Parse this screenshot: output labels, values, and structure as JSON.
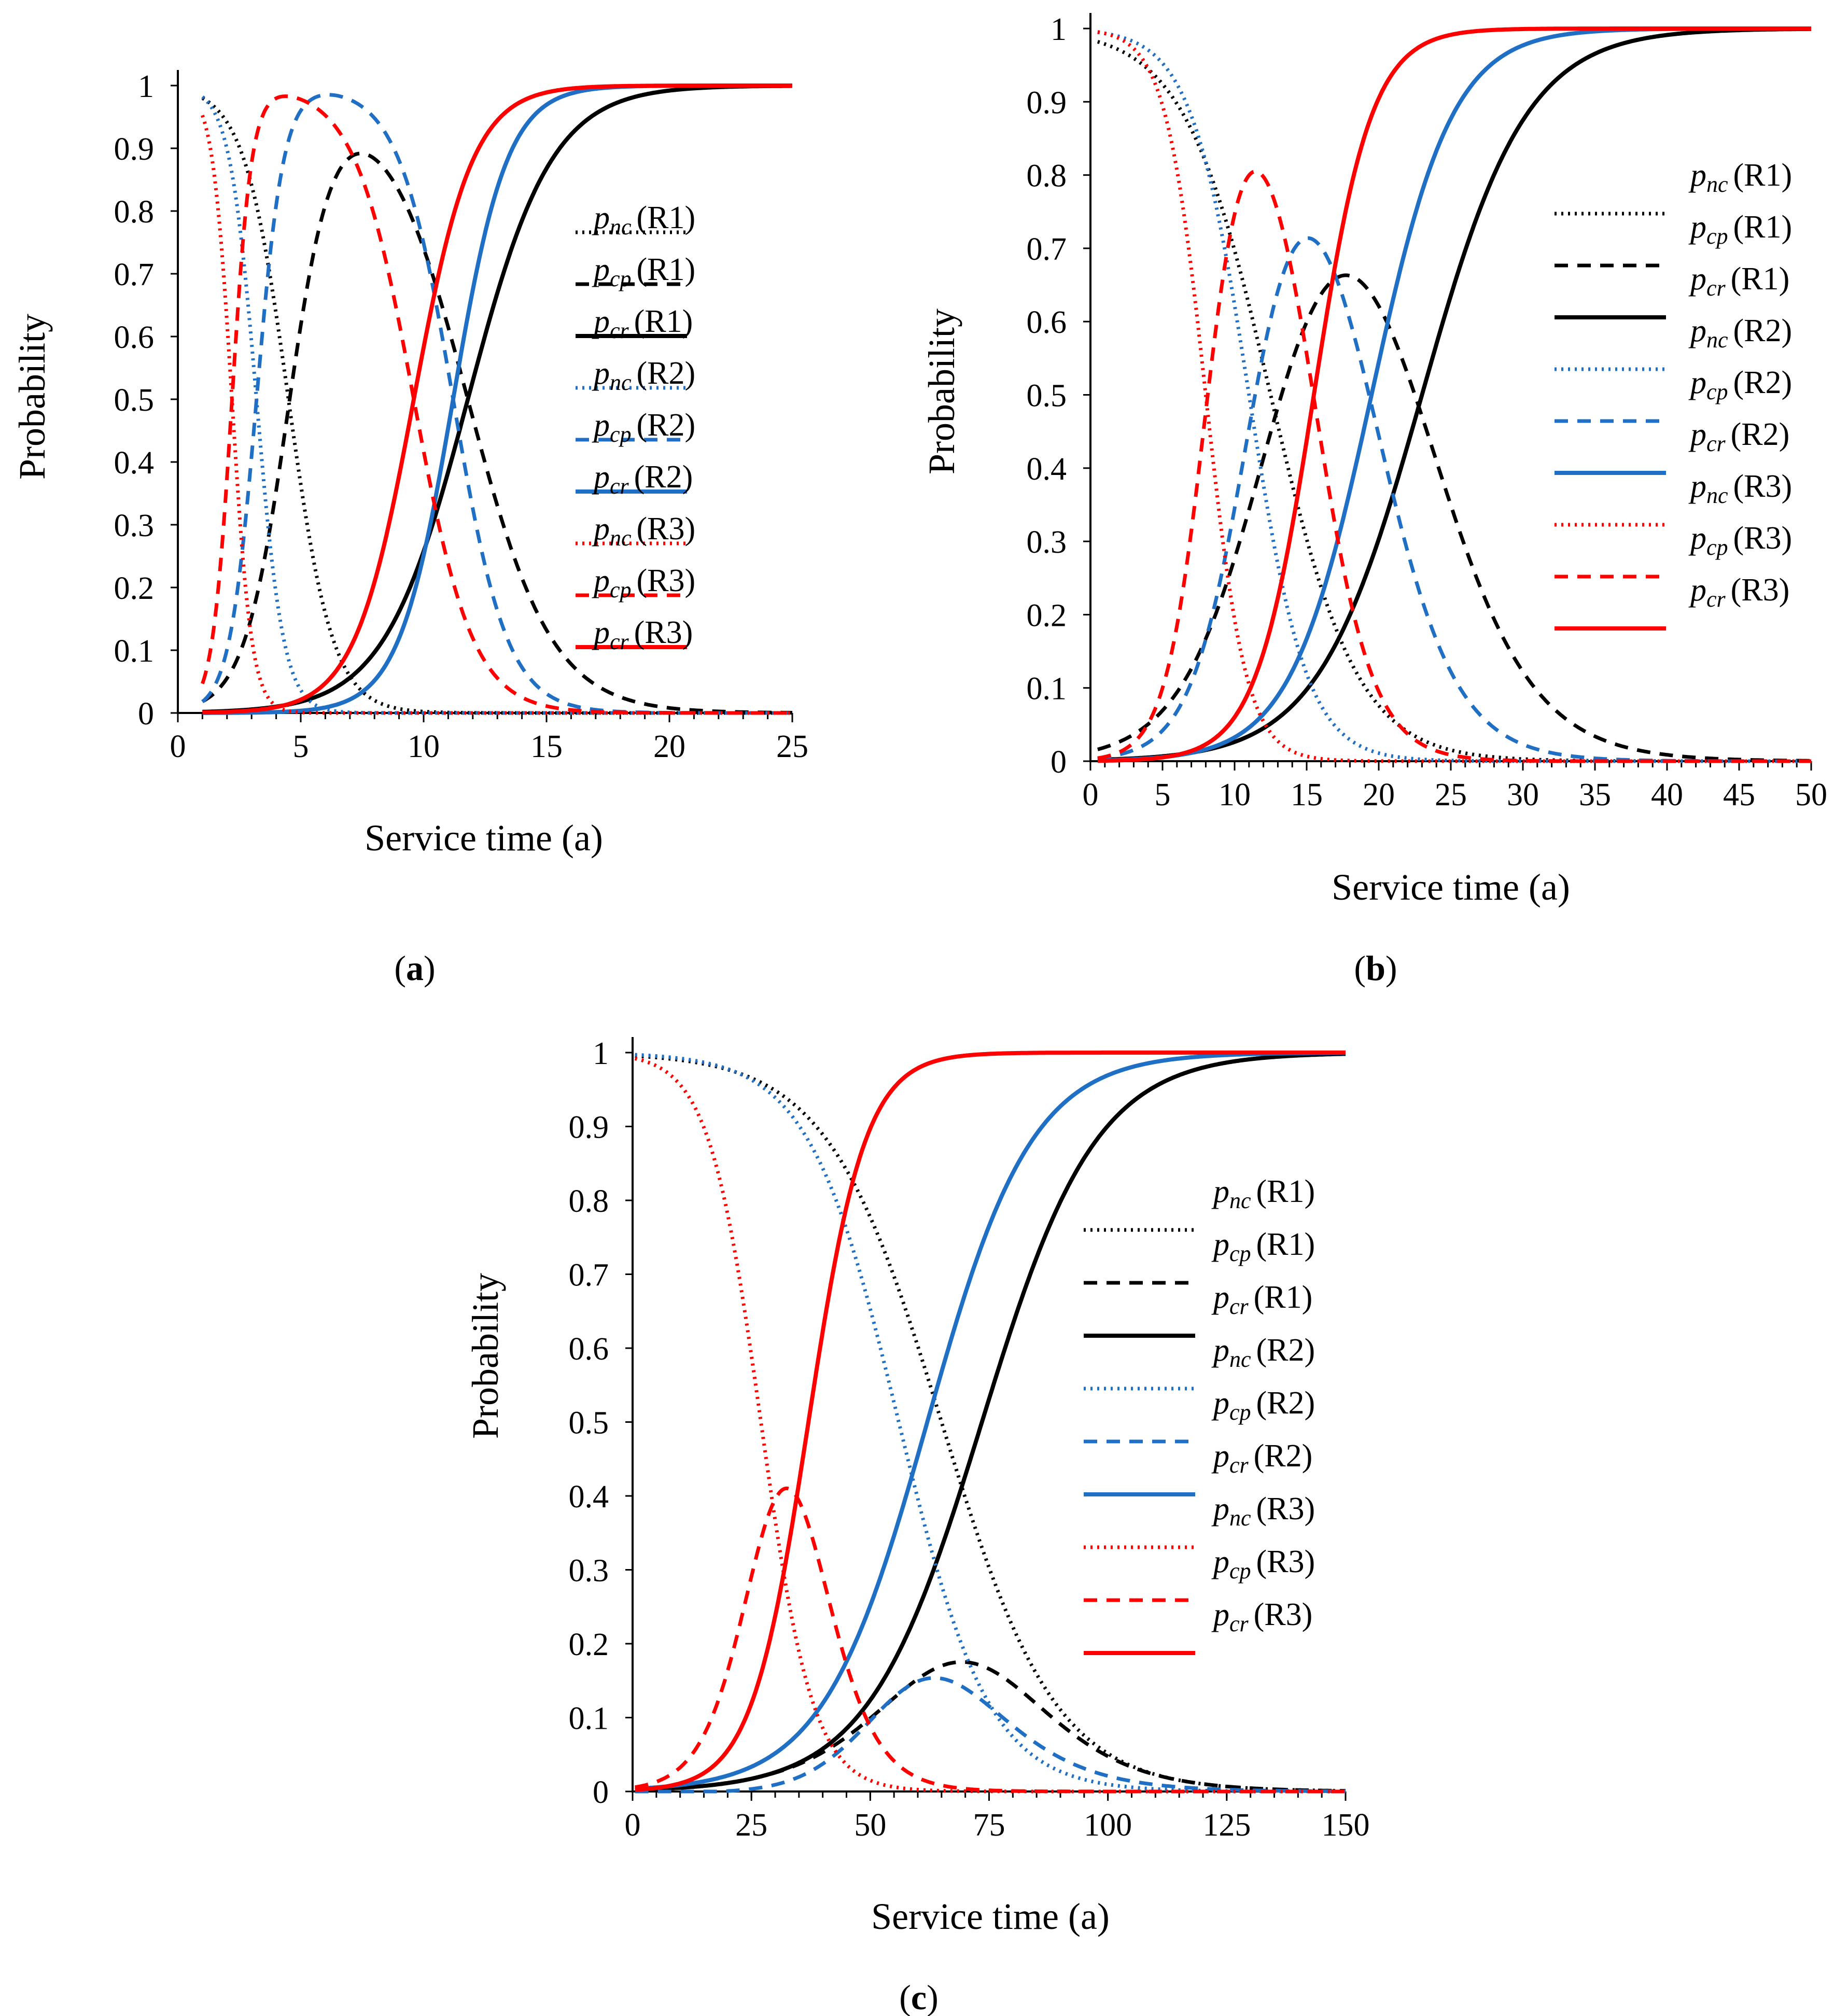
{
  "styles": {
    "colors": {
      "R1": "#000000",
      "R2": "#1F6FC5",
      "R3": "#FF0000"
    },
    "dash": {
      "pnc": "dotted",
      "pcp": "dashed",
      "pcr": "solid"
    }
  },
  "legend_entries": [
    {
      "p": "p",
      "sub": "nc",
      "label": "(R1)",
      "series": "pnc_R1"
    },
    {
      "p": "p",
      "sub": "cp",
      "label": "(R1)",
      "series": "pcp_R1"
    },
    {
      "p": "p",
      "sub": "cr",
      "label": "(R1)",
      "series": "pcr_R1"
    },
    {
      "p": "p",
      "sub": "nc",
      "label": "(R2)",
      "series": "pnc_R2"
    },
    {
      "p": "p",
      "sub": "cp",
      "label": "(R2)",
      "series": "pcp_R2"
    },
    {
      "p": "p",
      "sub": "cr",
      "label": "(R2)",
      "series": "pcr_R2"
    },
    {
      "p": "p",
      "sub": "nc",
      "label": "(R3)",
      "series": "pnc_R3"
    },
    {
      "p": "p",
      "sub": "cp",
      "label": "(R3)",
      "series": "pcp_R3"
    },
    {
      "p": "p",
      "sub": "cr",
      "label": "(R3)",
      "series": "pcr_R3"
    }
  ],
  "chart_data": [
    {
      "id": "a",
      "type": "line",
      "caption_letter": "a",
      "xlabel": "Service time (a)",
      "ylabel": "Probability",
      "xlim": [
        0,
        25
      ],
      "ylim": [
        0,
        1
      ],
      "xticks": [
        0,
        5,
        10,
        15,
        20,
        25
      ],
      "yticks": [
        0,
        0.1,
        0.2,
        0.3,
        0.4,
        0.5,
        0.6,
        0.7,
        0.8,
        0.9,
        1
      ],
      "ytick_labels": [
        "0",
        "0.1",
        "0.2",
        "0.3",
        "0.4",
        "0.5",
        "0.6",
        "0.7",
        "0.8",
        "0.9",
        "1"
      ],
      "xtick_labels": [
        "0",
        "5",
        "10",
        "15",
        "20",
        "25"
      ],
      "x_start": 1,
      "params": {
        "R1": [
          4.5,
          0.9,
          11.8,
          1.7
        ],
        "R2": [
          3.2,
          0.55,
          11.2,
          1.1
        ],
        "R3": [
          2.2,
          0.4,
          9.6,
          1.2
        ]
      }
    },
    {
      "id": "b",
      "type": "line",
      "caption_letter": "b",
      "xlabel": "Service time (a)",
      "ylabel": "Probability",
      "xlim": [
        0,
        50
      ],
      "ylim": [
        0,
        1
      ],
      "xticks": [
        0,
        5,
        10,
        15,
        20,
        25,
        30,
        35,
        40,
        45,
        50
      ],
      "yticks": [
        0,
        0.1,
        0.2,
        0.3,
        0.4,
        0.5,
        0.6,
        0.7,
        0.8,
        0.9,
        1
      ],
      "ytick_labels": [
        "0",
        "0.1",
        "0.2",
        "0.3",
        "0.4",
        "0.5",
        "0.6",
        "0.7",
        "0.8",
        "0.9",
        "1"
      ],
      "xtick_labels": [
        "0",
        "5",
        "10",
        "15",
        "20",
        "25",
        "30",
        "35",
        "40",
        "45",
        "50"
      ],
      "x_start": 0.5,
      "params": {
        "R1": [
          12.5,
          3.0,
          23.0,
          3.6
        ],
        "R2": [
          11.0,
          2.0,
          19.5,
          2.8
        ],
        "R3": [
          8.0,
          1.4,
          15.5,
          2.0
        ]
      }
    },
    {
      "id": "c",
      "type": "line",
      "caption_letter": "c",
      "xlabel": "Service time (a)",
      "ylabel": "Probability",
      "xlim": [
        0,
        150
      ],
      "ylim": [
        0,
        1
      ],
      "xticks": [
        0,
        25,
        50,
        75,
        100,
        125,
        150
      ],
      "yticks": [
        0,
        0.1,
        0.2,
        0.3,
        0.4,
        0.5,
        0.6,
        0.7,
        0.8,
        0.9,
        1
      ],
      "ytick_labels": [
        "0",
        "0.1",
        "0.2",
        "0.3",
        "0.4",
        "0.5",
        "0.6",
        "0.7",
        "0.8",
        "0.9",
        "1"
      ],
      "xtick_labels": [
        "0",
        "25",
        "50",
        "75",
        "100",
        "125",
        "150"
      ],
      "x_start": 0.5,
      "params": {
        "R1": [
          65.0,
          12.0,
          73.5,
          12.0
        ],
        "R2": [
          56.0,
          9.5,
          62.0,
          11.0
        ],
        "R3": [
          27.0,
          5.5,
          37.0,
          6.0
        ]
      }
    }
  ]
}
